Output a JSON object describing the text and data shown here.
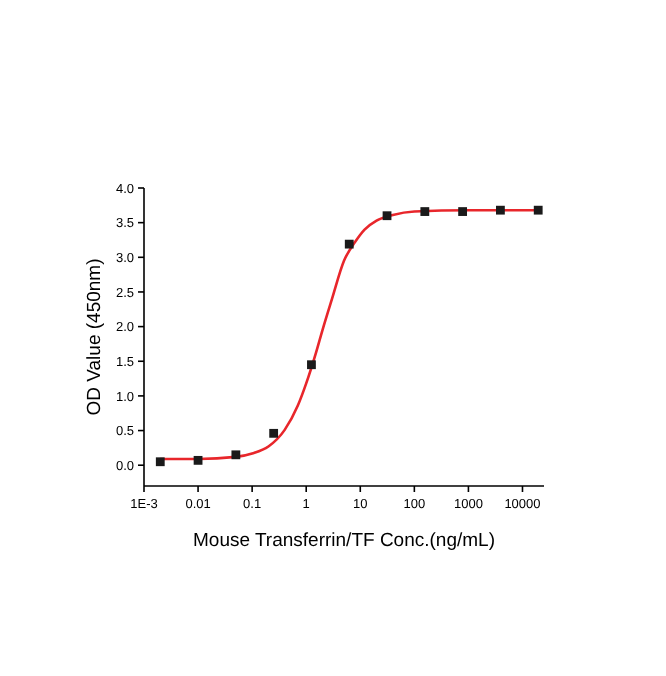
{
  "chart_data": {
    "type": "scatter",
    "xlabel": "Mouse Transferrin/TF Conc.(ng/mL)",
    "ylabel": "OD Value (450nm)",
    "log": "x",
    "xlim": [
      0.001,
      25000
    ],
    "xticks": [
      {
        "value": 0.001,
        "label": "1E-3"
      },
      0.01,
      0.1,
      1,
      10,
      100,
      1000,
      10000
    ],
    "ylim": [
      -0.3,
      4.0
    ],
    "yticks": [
      {
        "value": 0,
        "label": "0.0"
      },
      0.5,
      {
        "value": 1,
        "label": "1.0"
      },
      1.5,
      {
        "value": 2,
        "label": "2.0"
      },
      2.5,
      {
        "value": 3,
        "label": "3.0"
      },
      3.5,
      {
        "value": 4,
        "label": "4.0"
      }
    ],
    "grid": false,
    "series": [
      {
        "type": "line",
        "color": "#e8262b",
        "marker": "none",
        "line_style": "solid",
        "x": [
          0.002,
          0.01,
          0.05,
          0.1,
          0.2,
          0.4,
          0.7,
          1,
          1.5,
          2,
          3,
          5,
          8,
          12,
          20,
          40,
          100,
          1000,
          19531
        ],
        "values": [
          0.09,
          0.09,
          0.12,
          0.17,
          0.27,
          0.51,
          0.86,
          1.18,
          1.61,
          1.95,
          2.4,
          2.95,
          3.22,
          3.4,
          3.53,
          3.61,
          3.66,
          3.68,
          3.68
        ]
      },
      {
        "color": "#1a1a1a",
        "marker": "square",
        "x": [
          0.002,
          0.01,
          0.05,
          0.25,
          1.25,
          6.25,
          31.25,
          156.25,
          781,
          3906,
          19531
        ],
        "values": [
          0.05,
          0.07,
          0.15,
          0.46,
          1.45,
          3.19,
          3.6,
          3.66,
          3.66,
          3.68,
          3.68
        ]
      }
    ]
  }
}
